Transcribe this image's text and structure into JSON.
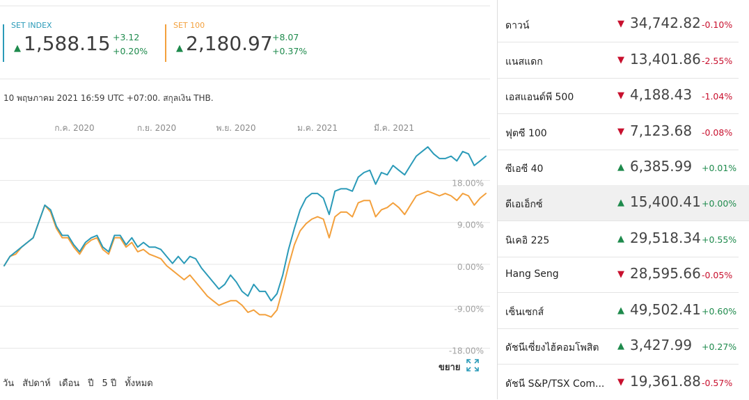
{
  "summary": {
    "set_index": {
      "name": "SET INDEX",
      "value": "1,588.15",
      "change": "+3.12",
      "pct": "+0.20%",
      "color": "#2a9ab8"
    },
    "set_100": {
      "name": "SET 100",
      "value": "2,180.97",
      "change": "+8.07",
      "pct": "+0.37%",
      "color": "#f3a03c"
    },
    "arrow_up": "▲",
    "timestamp": "10 พฤษภาคม 2021 16:59 UTC +07:00. สกุลเงิน THB."
  },
  "chart_data": {
    "type": "line",
    "x_tick_labels": [
      "ก.ค. 2020",
      "ก.ย. 2020",
      "พ.ย. 2020",
      "ม.ค. 2021",
      "มี.ค. 2021"
    ],
    "y_tick_labels": [
      "18.00%",
      "9.00%",
      "0.00%",
      "-9.00%",
      "-18.00%"
    ],
    "y_ticks": [
      18,
      9,
      0,
      -9,
      -18
    ],
    "ylim": [
      -24,
      27
    ],
    "grid": true,
    "series": [
      {
        "name": "SET INDEX",
        "color": "#2a9ab8",
        "values": [
          0.0,
          2.0,
          3.0,
          4.0,
          5.0,
          6.0,
          9.5,
          13.0,
          12.0,
          8.5,
          6.5,
          6.5,
          4.5,
          3.0,
          5.0,
          6.0,
          6.5,
          4.0,
          3.0,
          6.5,
          6.5,
          4.5,
          6.0,
          4.0,
          5.0,
          4.0,
          4.0,
          3.5,
          2.0,
          0.5,
          2.0,
          0.5,
          2.0,
          1.5,
          -0.5,
          -2.0,
          -3.5,
          -5.0,
          -4.0,
          -2.0,
          -3.5,
          -5.5,
          -6.5,
          -4.0,
          -5.5,
          -5.5,
          -7.5,
          -6.0,
          -2.0,
          3.5,
          8.0,
          12.0,
          14.5,
          15.5,
          15.5,
          14.5,
          11.0,
          16.0,
          16.5,
          16.5,
          16.0,
          19.0,
          20.0,
          20.5,
          17.5,
          20.0,
          19.5,
          21.5,
          20.5,
          19.5,
          21.5,
          23.5,
          24.5,
          25.5,
          24.0,
          23.0,
          23.0,
          23.5,
          22.5,
          24.5,
          24.0,
          21.5,
          22.5,
          23.5
        ]
      },
      {
        "name": "SET 100",
        "color": "#f3a03c",
        "values": [
          0.0,
          2.0,
          2.5,
          4.0,
          5.0,
          6.0,
          9.5,
          13.0,
          11.5,
          8.0,
          6.0,
          6.0,
          4.0,
          2.5,
          4.5,
          5.5,
          6.0,
          3.5,
          2.5,
          6.0,
          6.0,
          4.0,
          5.0,
          3.0,
          3.5,
          2.5,
          2.0,
          1.5,
          0.0,
          -1.0,
          -2.0,
          -3.0,
          -2.0,
          -3.5,
          -5.0,
          -6.5,
          -7.5,
          -8.5,
          -8.0,
          -7.5,
          -7.5,
          -8.5,
          -10.0,
          -9.5,
          -10.5,
          -10.5,
          -11.0,
          -9.5,
          -5.0,
          0.0,
          4.5,
          7.5,
          9.0,
          10.0,
          10.5,
          10.0,
          6.0,
          10.5,
          11.5,
          11.5,
          10.5,
          13.5,
          14.0,
          14.0,
          10.5,
          12.0,
          12.5,
          13.5,
          12.5,
          11.0,
          13.0,
          15.0,
          15.5,
          16.0,
          15.5,
          15.0,
          15.5,
          15.0,
          14.0,
          15.5,
          15.0,
          13.0,
          14.5,
          15.5
        ]
      }
    ]
  },
  "controls": {
    "ranges": [
      "วัน",
      "สัปดาห์",
      "เดือน",
      "ปี",
      "5 ปี",
      "ทั้งหมด"
    ],
    "expand_label": "ขยาย",
    "expand_icon": "expand-icon"
  },
  "markets": [
    {
      "name": "ดาวน์",
      "value": "34,742.82",
      "pct": "-0.10%",
      "dir": "down"
    },
    {
      "name": "แนสแดก",
      "value": "13,401.86",
      "pct": "-2.55%",
      "dir": "down"
    },
    {
      "name": "เอสแอนด์พี 500",
      "value": "4,188.43",
      "pct": "-1.04%",
      "dir": "down"
    },
    {
      "name": "ฟุตซี 100",
      "value": "7,123.68",
      "pct": "-0.08%",
      "dir": "down"
    },
    {
      "name": "ซีเอซี 40",
      "value": "6,385.99",
      "pct": "+0.01%",
      "dir": "up"
    },
    {
      "name": "ดีเอเอ็กซ์",
      "value": "15,400.41",
      "pct": "+0.00%",
      "dir": "up",
      "highlight": true
    },
    {
      "name": "นิเคอิ 225",
      "value": "29,518.34",
      "pct": "+0.55%",
      "dir": "up"
    },
    {
      "name": "Hang Seng",
      "value": "28,595.66",
      "pct": "-0.05%",
      "dir": "down"
    },
    {
      "name": "เซ็นเซกส์",
      "value": "49,502.41",
      "pct": "+0.60%",
      "dir": "up"
    },
    {
      "name": "ดัชนีเซี่ยงไฮ้คอมโพสิต",
      "value": "3,427.99",
      "pct": "+0.27%",
      "dir": "up"
    },
    {
      "name": "ดัชนี S&P/TSX Com...",
      "value": "19,361.88",
      "pct": "-0.57%",
      "dir": "down"
    }
  ]
}
